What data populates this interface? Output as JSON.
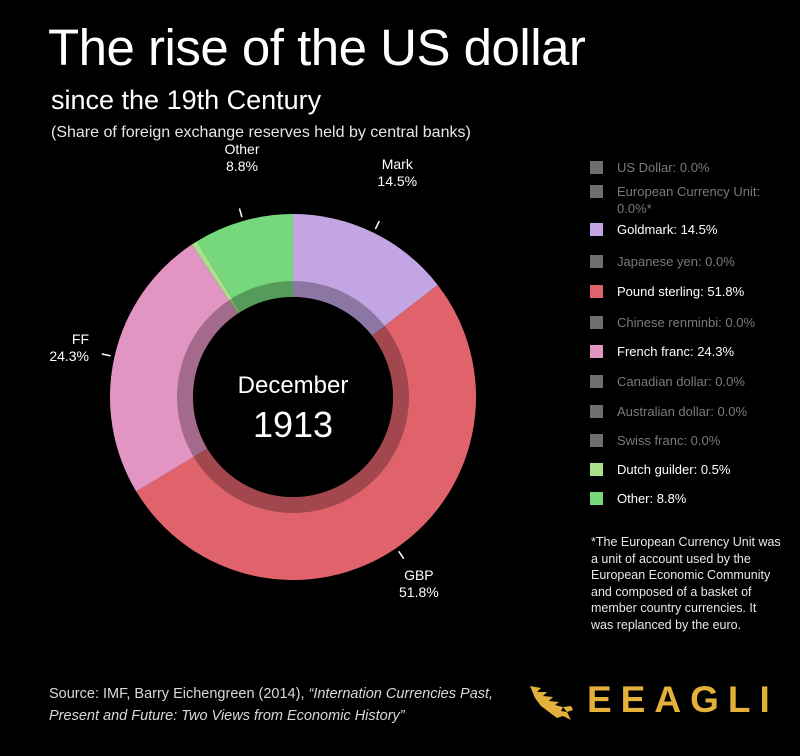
{
  "header": {
    "title": "The rise of the US dollar",
    "subtitle": "since the 19th Century",
    "subsubtitle": "(Share of foreign exchange reserves held by central banks)"
  },
  "chart_data": {
    "type": "pie",
    "center_label": {
      "month": "December",
      "year": "1913"
    },
    "slices": [
      {
        "name": "Mark",
        "value": 14.5,
        "color": "#c3a5e3",
        "label": "Mark",
        "value_label": "14.5%"
      },
      {
        "name": "GBP",
        "value": 51.8,
        "color": "#e0636b",
        "label": "GBP",
        "value_label": "51.8%"
      },
      {
        "name": "FF",
        "value": 24.3,
        "color": "#e294c3",
        "label": "FF",
        "value_label": "24.3%"
      },
      {
        "name": "Dutch guilder",
        "value": 0.5,
        "color": "#a9e08c",
        "label": "",
        "value_label": ""
      },
      {
        "name": "Other",
        "value": 8.8,
        "color": "#76d77d",
        "label": "Other",
        "value_label": "8.8%"
      }
    ]
  },
  "legend": [
    {
      "text": "US Dollar: 0.0%",
      "active": false,
      "color": "#6e6e6e"
    },
    {
      "text": "European Currency Unit: 0.0%*",
      "active": false,
      "color": "#6e6e6e"
    },
    {
      "text": "Goldmark: 14.5%",
      "active": true,
      "color": "#c3a5e3"
    },
    {
      "text": "Japanese yen: 0.0%",
      "active": false,
      "color": "#6e6e6e"
    },
    {
      "text": "Pound sterling: 51.8%",
      "active": true,
      "color": "#e0636b"
    },
    {
      "text": "Chinese renminbi: 0.0%",
      "active": false,
      "color": "#6e6e6e"
    },
    {
      "text": "French franc: 24.3%",
      "active": true,
      "color": "#e294c3"
    },
    {
      "text": "Canadian dollar: 0.0%",
      "active": false,
      "color": "#6e6e6e"
    },
    {
      "text": "Australian dollar: 0.0%",
      "active": false,
      "color": "#6e6e6e"
    },
    {
      "text": "Swiss franc: 0.0%",
      "active": false,
      "color": "#6e6e6e"
    },
    {
      "text": "Dutch guilder: 0.5%",
      "active": true,
      "color": "#a9e08c"
    },
    {
      "text": "Other: 8.8%",
      "active": true,
      "color": "#76d77d"
    }
  ],
  "note": "*The European Currency Unit was a unit of account used by the European Economic Community and composed of a basket of member country currencies. It was replanced by the euro.",
  "source": {
    "prefix": "Source: IMF, Barry Eichengreen (2014), ",
    "italic_line1": "“Internation Currencies Past,",
    "italic_line2": "Present and Future: Two Views from Economic History”"
  },
  "logo": {
    "text": "EEAGLI",
    "icon": "eagle-icon",
    "color": "#e3b13a"
  }
}
